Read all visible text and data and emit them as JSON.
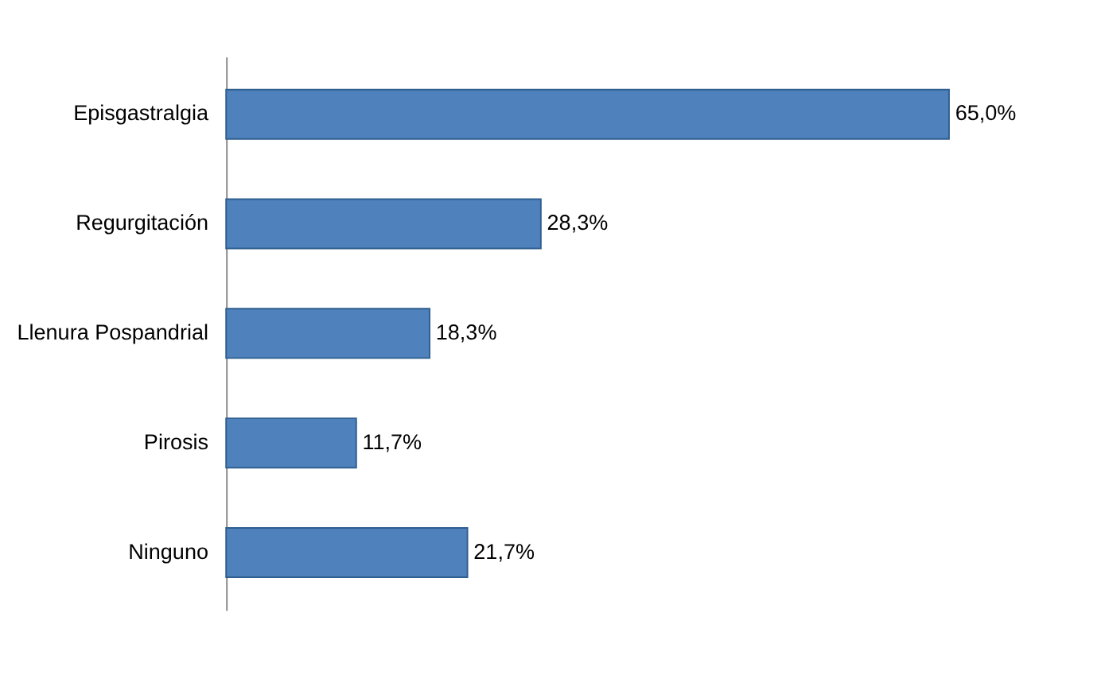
{
  "chart_data": {
    "type": "bar",
    "orientation": "horizontal",
    "categories": [
      "Episgastralgia",
      "Regurgitación",
      "Llenura Pospandrial",
      "Pirosis",
      "Ninguno"
    ],
    "values": [
      65.0,
      28.3,
      18.3,
      11.7,
      21.7
    ],
    "value_labels": [
      "65,0%",
      "28,3%",
      "18,3%",
      "11,7%",
      "21,7%"
    ],
    "color": "#4f81bd"
  }
}
